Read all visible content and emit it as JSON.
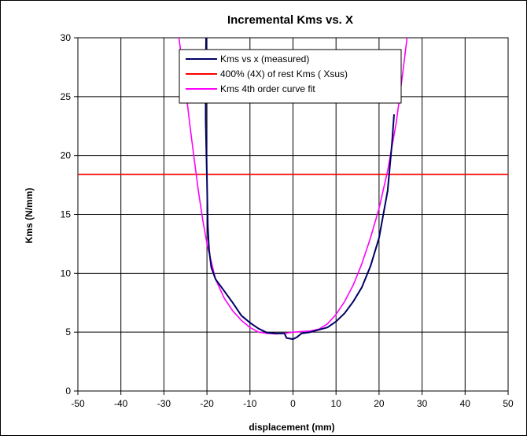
{
  "chart_data": {
    "type": "line",
    "title": "Incremental Kms vs. X",
    "xlabel": "displacement (mm)",
    "ylabel": "Kms (N/mm)",
    "xlim": [
      -50,
      50
    ],
    "ylim": [
      0,
      30
    ],
    "x_ticks": [
      -50,
      -40,
      -30,
      -20,
      -10,
      0,
      10,
      20,
      30,
      40,
      50
    ],
    "y_ticks": [
      0,
      5,
      10,
      15,
      20,
      25,
      30
    ],
    "grid": true,
    "legend": "top-center",
    "series": [
      {
        "name": "Kms vs x (measured)",
        "color": "#000066",
        "points": [
          [
            -20.2,
            30
          ],
          [
            -20.3,
            26
          ],
          [
            -20.3,
            23
          ],
          [
            -20.0,
            18
          ],
          [
            -19.8,
            14
          ],
          [
            -19.5,
            12
          ],
          [
            -19.0,
            10.5
          ],
          [
            -18.0,
            9.5
          ],
          [
            -16.0,
            8.5
          ],
          [
            -14.0,
            7.5
          ],
          [
            -12.0,
            6.4
          ],
          [
            -10.0,
            5.8
          ],
          [
            -8.0,
            5.3
          ],
          [
            -6.0,
            4.95
          ],
          [
            -4.0,
            4.9
          ],
          [
            -2.0,
            4.9
          ],
          [
            -1.5,
            4.5
          ],
          [
            0.0,
            4.4
          ],
          [
            1.0,
            4.6
          ],
          [
            2.0,
            4.9
          ],
          [
            4.0,
            5.0
          ],
          [
            6.0,
            5.2
          ],
          [
            8.0,
            5.4
          ],
          [
            10.0,
            5.9
          ],
          [
            12.0,
            6.6
          ],
          [
            14.0,
            7.6
          ],
          [
            16.0,
            8.8
          ],
          [
            18.0,
            10.6
          ],
          [
            20.0,
            13.0
          ],
          [
            22.0,
            17.0
          ],
          [
            23.0,
            21.0
          ],
          [
            23.5,
            23.5
          ]
        ]
      },
      {
        "name": "400% (4X) of rest Kms ( Xsus)",
        "color": "#ff0000",
        "points": [
          [
            -50,
            18.4
          ],
          [
            50,
            18.4
          ]
        ]
      },
      {
        "name": "Kms 4th order curve fit",
        "color": "#ff00ff",
        "points": [
          [
            -26.5,
            30
          ],
          [
            -25,
            25.8
          ],
          [
            -24,
            22.7
          ],
          [
            -23,
            19.8
          ],
          [
            -22,
            17.0
          ],
          [
            -21,
            14.6
          ],
          [
            -20,
            12.5
          ],
          [
            -18,
            9.5
          ],
          [
            -16,
            7.9
          ],
          [
            -14,
            6.8
          ],
          [
            -12,
            6.0
          ],
          [
            -10,
            5.4
          ],
          [
            -8,
            5.0
          ],
          [
            -6,
            4.9
          ],
          [
            -4,
            4.85
          ],
          [
            -2,
            4.9
          ],
          [
            0,
            5.0
          ],
          [
            2,
            5.05
          ],
          [
            4,
            5.1
          ],
          [
            6,
            5.25
          ],
          [
            8,
            5.7
          ],
          [
            10,
            6.5
          ],
          [
            12,
            7.6
          ],
          [
            14,
            9.0
          ],
          [
            16,
            10.8
          ],
          [
            18,
            13.0
          ],
          [
            20,
            15.5
          ],
          [
            22,
            18.7
          ],
          [
            24,
            22.8
          ],
          [
            25.5,
            27.0
          ],
          [
            26.5,
            30
          ]
        ]
      }
    ]
  }
}
